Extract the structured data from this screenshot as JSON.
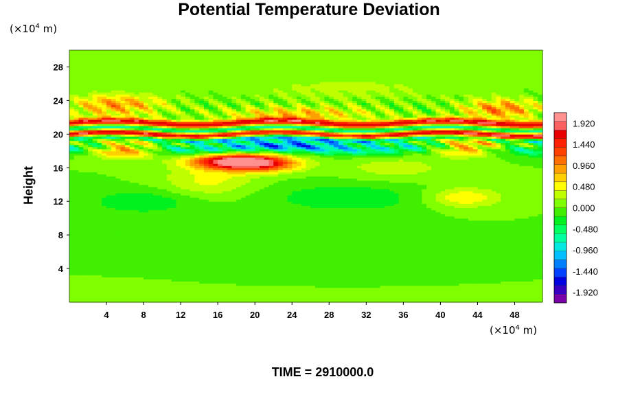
{
  "chart_data": {
    "type": "heatmap",
    "title": "Potential Temperature Deviation",
    "ylabel": "Height",
    "xunit": {
      "prefix": "(×10",
      "exp": "4",
      "suffix": " m)"
    },
    "yunit": {
      "prefix": "(×10",
      "exp": "4",
      "suffix": " m)"
    },
    "xlim": [
      0,
      51
    ],
    "ylim": [
      0,
      30
    ],
    "xticks": [
      "4",
      "8",
      "12",
      "16",
      "20",
      "24",
      "28",
      "32",
      "36",
      "40",
      "44",
      "48"
    ],
    "yticks": [
      "4",
      "8",
      "12",
      "16",
      "20",
      "24",
      "28"
    ],
    "colorbar": {
      "range": [
        -2.16,
        2.16
      ],
      "labels": [
        "1.920",
        "1.440",
        "0.960",
        "0.480",
        "0.000",
        "-0.480",
        "-0.960",
        "-1.440",
        "-1.920"
      ],
      "colors": [
        "#7a00a8",
        "#3a00c0",
        "#0000e0",
        "#0040ff",
        "#0080ff",
        "#00c0ff",
        "#00e8e0",
        "#00ffa0",
        "#00ff60",
        "#00f020",
        "#40f000",
        "#80ff00",
        "#c0ff00",
        "#ffff00",
        "#ffd000",
        "#ffa000",
        "#ff7000",
        "#ff4000",
        "#ff2000",
        "#e60000",
        "#ff6060",
        "#ff9090"
      ]
    },
    "field": {
      "background": 0.0,
      "features": [
        {
          "kind": "band",
          "y": 20.0,
          "thickness": 0.9,
          "value": 2.1
        },
        {
          "kind": "band",
          "y": 20.6,
          "thickness": 0.35,
          "value": -1.95
        },
        {
          "kind": "band",
          "y": 19.5,
          "thickness": 0.35,
          "value": -1.9
        },
        {
          "kind": "band",
          "y": 21.4,
          "thickness": 0.4,
          "value": 1.5
        },
        {
          "kind": "band",
          "y": 18.5,
          "thickness": 0.8,
          "value": -0.7
        },
        {
          "kind": "blob",
          "x": 17.5,
          "y": 16.8,
          "w": 4.5,
          "h": 0.9,
          "value": 1.9
        },
        {
          "kind": "blob",
          "x": 21.0,
          "y": 16.5,
          "w": 4.0,
          "h": 1.0,
          "value": 1.2
        },
        {
          "kind": "blob",
          "x": 6.0,
          "y": 18.3,
          "w": 3.5,
          "h": 1.0,
          "value": 1.3
        },
        {
          "kind": "blob",
          "x": 43.0,
          "y": 18.5,
          "w": 3.5,
          "h": 1.0,
          "value": 1.3
        },
        {
          "kind": "blob",
          "x": 46.5,
          "y": 23.0,
          "w": 4.0,
          "h": 1.2,
          "value": 1.0
        },
        {
          "kind": "blob",
          "x": 5.0,
          "y": 23.5,
          "w": 5.0,
          "h": 1.3,
          "value": 0.9
        },
        {
          "kind": "blob",
          "x": 25.0,
          "y": 22.5,
          "w": 8.0,
          "h": 0.8,
          "value": 0.7
        },
        {
          "kind": "blob",
          "x": 15.0,
          "y": 14.5,
          "w": 5.0,
          "h": 2.0,
          "value": 0.45
        },
        {
          "kind": "blob",
          "x": 42.5,
          "y": 12.5,
          "w": 4.0,
          "h": 1.2,
          "value": 0.6
        },
        {
          "kind": "blob",
          "x": 8.0,
          "y": 12.0,
          "w": 6.0,
          "h": 1.5,
          "value": -0.35
        },
        {
          "kind": "blob",
          "x": 30.0,
          "y": 12.5,
          "w": 9.0,
          "h": 1.8,
          "value": -0.35
        },
        {
          "kind": "blob",
          "x": 24.0,
          "y": 19.0,
          "w": 10.0,
          "h": 1.0,
          "value": -0.8
        },
        {
          "kind": "blob",
          "x": 30.0,
          "y": 25.5,
          "w": 12.0,
          "h": 1.5,
          "value": 0.25
        },
        {
          "kind": "blob",
          "x": 35.0,
          "y": 16.0,
          "w": 6.0,
          "h": 1.5,
          "value": 0.3
        }
      ]
    }
  },
  "time_label": "TIME = 2910000.0"
}
